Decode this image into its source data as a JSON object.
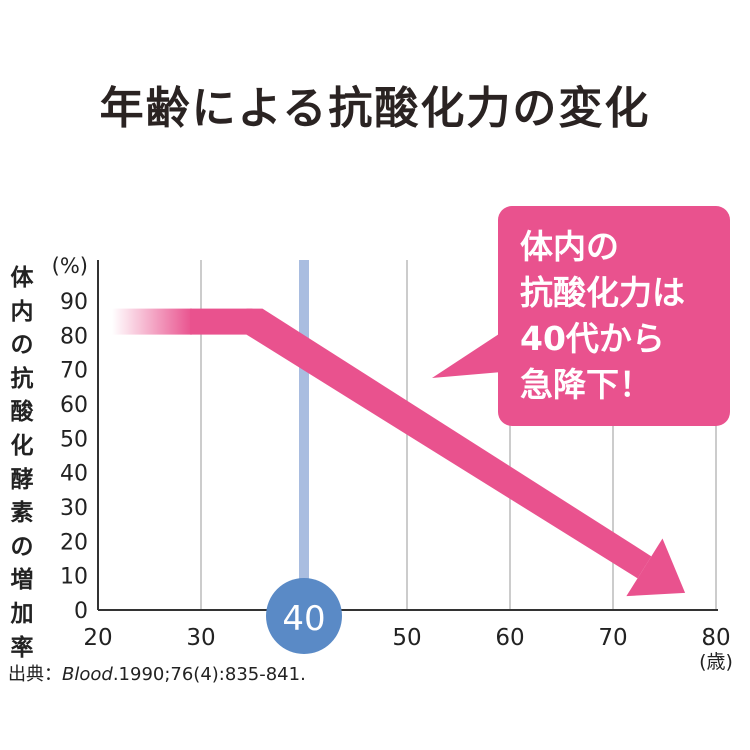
{
  "title": "年齢による抗酸化力の変化",
  "ylabel_chars": [
    "体",
    "内",
    "の",
    "抗",
    "酸",
    "化",
    "酵",
    "素",
    "の",
    "増",
    "加",
    "率"
  ],
  "source": {
    "prefix": "出典：",
    "journal": "Blood",
    "citation": ".1990;76(4):835-841."
  },
  "callout": {
    "lines": [
      "体内の",
      "抗酸化力は",
      "40代から",
      "急降下！"
    ]
  },
  "colors": {
    "pink": "#e9528e",
    "highlight_line": "#a9bde0",
    "highlight_circle": "#5a8ac6",
    "grid": "#bbbbbb",
    "axis": "#333333"
  },
  "chart_data": {
    "type": "line",
    "x": [
      20,
      35,
      77
    ],
    "series": [
      {
        "values": [
          84,
          84,
          5
        ]
      }
    ],
    "x_ticks": [
      "20",
      "30",
      "40",
      "50",
      "60",
      "70",
      "80"
    ],
    "y_ticks": [
      "0",
      "10",
      "20",
      "30",
      "40",
      "50",
      "60",
      "70",
      "80",
      "90"
    ],
    "y_unit": "(%)",
    "x_unit": "(歳)",
    "xlim": [
      20,
      80
    ],
    "ylim": [
      0,
      100
    ],
    "highlight_x": 40,
    "highlight_label": "40",
    "grid": "vertical"
  }
}
